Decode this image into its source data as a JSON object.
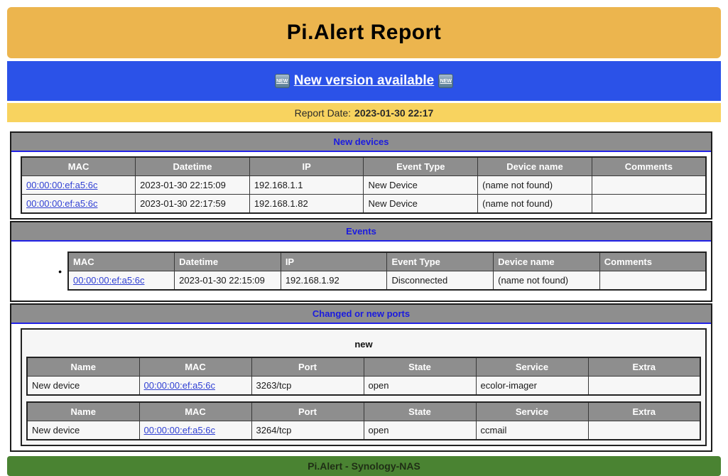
{
  "header": {
    "title": "Pi.Alert Report"
  },
  "banner": {
    "link_label": "New version available",
    "new_badge": "NEW"
  },
  "report_date": {
    "label": "Report Date:",
    "value": "2023-01-30 22:17"
  },
  "sections": {
    "new_devices": {
      "title": "New devices",
      "columns": [
        "MAC",
        "Datetime",
        "IP",
        "Event Type",
        "Device name",
        "Comments"
      ],
      "rows": [
        {
          "mac": "00:00:00:ef:a5:6c",
          "datetime": "2023-01-30 22:15:09",
          "ip": "192.168.1.1",
          "event_type": "New Device",
          "device_name": "(name not found)",
          "comments": ""
        },
        {
          "mac": "00:00:00:ef:a5:6c",
          "datetime": "2023-01-30 22:17:59",
          "ip": "192.168.1.82",
          "event_type": "New Device",
          "device_name": "(name not found)",
          "comments": ""
        }
      ]
    },
    "events": {
      "title": "Events",
      "bullet": "•",
      "columns": [
        "MAC",
        "Datetime",
        "IP",
        "Event Type",
        "Device name",
        "Comments"
      ],
      "rows": [
        {
          "mac": "00:00:00:ef:a5:6c",
          "datetime": "2023-01-30 22:15:09",
          "ip": "192.168.1.92",
          "event_type": "Disconnected",
          "device_name": "(name not found)",
          "comments": ""
        }
      ]
    },
    "ports": {
      "title": "Changed or new ports",
      "group_label": "new",
      "columns": [
        "Name",
        "MAC",
        "Port",
        "State",
        "Service",
        "Extra"
      ],
      "tables": [
        {
          "rows": [
            {
              "name": "New device",
              "mac": "00:00:00:ef:a5:6c",
              "port": "3263/tcp",
              "state": "open",
              "service": "ecolor-imager",
              "extra": ""
            }
          ]
        },
        {
          "rows": [
            {
              "name": "New device",
              "mac": "00:00:00:ef:a5:6c",
              "port": "3264/tcp",
              "state": "open",
              "service": "ccmail",
              "extra": ""
            }
          ]
        }
      ]
    }
  },
  "footer": {
    "text": "Pi.Alert - Synology-NAS"
  },
  "colors": {
    "header_orange": "#ecb54e",
    "banner_blue": "#2b52e8",
    "date_yellow": "#f8d35f",
    "section_header_gray": "#8e8e8e",
    "section_title_blue": "#1b1bdf",
    "link_blue": "#2f3fd3",
    "footer_green": "#4a8332"
  }
}
